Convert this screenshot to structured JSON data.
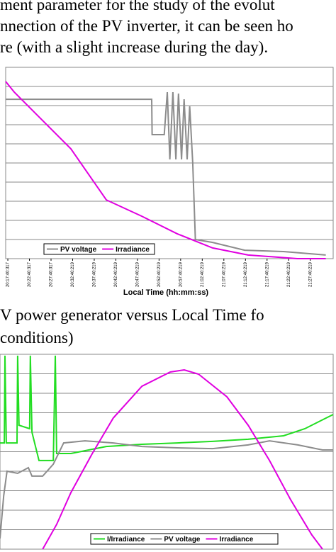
{
  "body_text": {
    "lines": [
      "ment parameter for the study of the evolut",
      "nnection of the PV inverter, it can be seen ho",
      "re (with a slight increase during the day)."
    ]
  },
  "caption": {
    "lines": [
      "V power generator versus Local Time fo",
      "conditions)"
    ]
  },
  "chart_data": [
    {
      "type": "line",
      "x_label": "Local Time (hh:mm:ss)",
      "xlim": [
        -0.5,
        75.3
      ],
      "xticks": [
        {
          "value": 0,
          "label": "20:17:40:317"
        },
        {
          "value": 5,
          "label": "20:22:40:317"
        },
        {
          "value": 10,
          "label": "20:27:40:317"
        },
        {
          "value": 15,
          "label": "20:32:40:219"
        },
        {
          "value": 20,
          "label": "20:37:40:219"
        },
        {
          "value": 25,
          "label": "20:42:40:219"
        },
        {
          "value": 30,
          "label": "20:47:40:219"
        },
        {
          "value": 35,
          "label": "20:52:40:219"
        },
        {
          "value": 40,
          "label": "20:57:40:219"
        },
        {
          "value": 45,
          "label": "21:02:40:219"
        },
        {
          "value": 50,
          "label": "21:07:40:219"
        },
        {
          "value": 55,
          "label": "21:12:40:219"
        },
        {
          "value": 60,
          "label": "21:17:40:219"
        },
        {
          "value": 65,
          "label": "21:22:40:219"
        },
        {
          "value": 70,
          "label": "21:27:40:219"
        }
      ],
      "ylim": [
        0,
        10
      ],
      "yticks": [
        1,
        2,
        3,
        4,
        5,
        6,
        7,
        8,
        9
      ],
      "grid": true,
      "series": [
        {
          "name": "PV voltage",
          "color": "#8c8c8c",
          "x": [
            -0.5,
            33.3,
            33.4,
            36.2,
            36.9,
            37.5,
            38.2,
            38.9,
            39.5,
            40.2,
            40.8,
            41.5,
            42.1,
            42.8,
            43.4,
            47.4,
            54.8,
            63.8,
            73.6
          ],
          "values": [
            8.33,
            8.33,
            6.48,
            6.48,
            8.7,
            5.19,
            8.7,
            5.19,
            8.63,
            5.19,
            8.33,
            5.19,
            7.96,
            5.0,
            1.0,
            0.85,
            0.44,
            0.37,
            0.19
          ]
        },
        {
          "name": "Irradiance",
          "color": "#e000e0",
          "x": [
            -0.5,
            1.5,
            6.4,
            14.6,
            22.8,
            31,
            39.2,
            47.4,
            55.6,
            67,
            73.6
          ],
          "values": [
            9.26,
            8.7,
            7.59,
            5.74,
            3.07,
            2.22,
            1.3,
            0.56,
            0.19,
            0,
            0
          ]
        }
      ]
    },
    {
      "type": "line",
      "xlim": [
        0,
        100
      ],
      "ylim": [
        0,
        10
      ],
      "yticks": [
        1,
        2,
        3,
        4,
        5,
        6,
        7,
        8,
        9
      ],
      "grid": true,
      "series": [
        {
          "name": "I/Irradiance",
          "color": "#22dd22",
          "x": [
            0,
            1.3,
            1.5,
            1.9,
            5.1,
            5.3,
            5.7,
            8.9,
            9.1,
            9.6,
            11.7,
            16,
            16.6,
            17,
            21.3,
            31.9,
            42.6,
            53.2,
            63.8,
            74.5,
            85.1,
            91.5,
            97.9,
            100
          ],
          "values": [
            5.45,
            5.45,
            9.93,
            5.45,
            5.45,
            9.93,
            6.36,
            6.18,
            9.93,
            6.0,
            4.55,
            4.55,
            9.93,
            4.91,
            4.91,
            5.27,
            5.38,
            5.45,
            5.53,
            5.64,
            5.82,
            6.18,
            6.73,
            6.91
          ]
        },
        {
          "name": "PV voltage",
          "color": "#8c8c8c",
          "x": [
            0,
            1.1,
            2.1,
            5.3,
            8.5,
            9.6,
            12.8,
            16,
            19.1,
            25.5,
            34,
            42.6,
            53.2,
            63.8,
            74.5,
            80.9,
            89.4,
            96.8,
            100
          ],
          "values": [
            0.55,
            2.73,
            4.0,
            3.89,
            4.18,
            3.75,
            3.75,
            4.36,
            5.45,
            5.56,
            5.45,
            5.27,
            5.2,
            5.16,
            5.35,
            5.56,
            5.35,
            5.09,
            5.09
          ]
        },
        {
          "name": "Irradiance",
          "color": "#e000e0",
          "x": [
            12.8,
            17,
            21.3,
            27.7,
            34,
            42.6,
            51.1,
            55.3,
            59.6,
            68.1,
            74.5,
            80.9,
            87.2,
            93.6,
            96.8
          ],
          "values": [
            0,
            1.27,
            2.91,
            4.91,
            6.73,
            8.36,
            9.09,
            9.2,
            8.98,
            7.82,
            6.36,
            4.55,
            2.55,
            0.73,
            0
          ]
        }
      ]
    }
  ]
}
